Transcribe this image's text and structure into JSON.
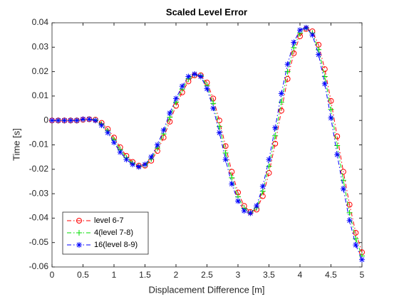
{
  "chart_data": {
    "type": "line",
    "title": "Scaled Level Error",
    "x_label": "Displacement Difference [m]",
    "y_label": "Time [s]",
    "x": [
      0,
      0.1,
      0.2,
      0.3,
      0.4,
      0.5,
      0.6,
      0.7,
      0.8,
      0.9,
      1,
      1.1,
      1.2,
      1.3,
      1.4,
      1.5,
      1.6,
      1.7,
      1.8,
      1.9,
      2,
      2.1,
      2.2,
      2.3,
      2.4,
      2.5,
      2.6,
      2.7,
      2.8,
      2.9,
      3,
      3.1,
      3.2,
      3.3,
      3.4,
      3.5,
      3.6,
      3.7,
      3.8,
      3.9,
      4,
      4.1,
      4.2,
      4.3,
      4.4,
      4.5,
      4.6,
      4.7,
      4.8,
      4.9,
      5
    ],
    "series": [
      {
        "name": "level 6-7",
        "color": "#ff0000",
        "marker": "o",
        "line_style": "-.",
        "values": [
          0,
          0,
          0,
          0,
          0,
          0.0003,
          0.0005,
          0.0003,
          -0.001,
          -0.0035,
          -0.007,
          -0.011,
          -0.0145,
          -0.017,
          -0.0185,
          -0.0185,
          -0.0165,
          -0.0125,
          -0.007,
          -0.0005,
          0.006,
          0.0115,
          0.016,
          0.0185,
          0.0185,
          0.0155,
          0.009,
          0,
          -0.0105,
          -0.021,
          -0.0295,
          -0.035,
          -0.0375,
          -0.0365,
          -0.031,
          -0.0215,
          -0.0095,
          0.004,
          0.017,
          0.0275,
          0.0345,
          0.0375,
          0.0365,
          0.031,
          0.021,
          0.008,
          -0.0065,
          -0.021,
          -0.0345,
          -0.046,
          -0.054
        ]
      },
      {
        "name": "4(level 7-8)",
        "color": "#00dd00",
        "marker": "+",
        "line_style": "-.",
        "values": [
          0,
          0,
          0,
          0,
          0,
          0.0004,
          0.0005,
          0.0002,
          -0.0015,
          -0.0043,
          -0.008,
          -0.012,
          -0.0153,
          -0.0175,
          -0.0188,
          -0.0183,
          -0.0158,
          -0.0113,
          -0.0055,
          0.0013,
          0.0075,
          0.0128,
          0.017,
          0.0188,
          0.0183,
          0.0143,
          0.007,
          -0.0025,
          -0.0133,
          -0.0235,
          -0.0313,
          -0.036,
          -0.0378,
          -0.0358,
          -0.029,
          -0.0188,
          -0.0063,
          0.0075,
          0.02,
          0.0298,
          0.0358,
          0.0378,
          0.0358,
          0.029,
          0.018,
          0.0045,
          -0.0103,
          -0.0245,
          -0.0378,
          -0.0485,
          -0.0555
        ]
      },
      {
        "name": "16(level 8-9)",
        "color": "#0000ff",
        "marker": "*",
        "line_style": "-.",
        "values": [
          0,
          0,
          0,
          0,
          0,
          0.0005,
          0.0005,
          0,
          -0.002,
          -0.005,
          -0.009,
          -0.013,
          -0.016,
          -0.018,
          -0.019,
          -0.018,
          -0.015,
          -0.01,
          -0.004,
          0.003,
          0.009,
          0.014,
          0.018,
          0.019,
          0.018,
          0.013,
          0.005,
          -0.005,
          -0.016,
          -0.026,
          -0.033,
          -0.037,
          -0.038,
          -0.035,
          -0.027,
          -0.016,
          -0.003,
          0.011,
          0.023,
          0.032,
          0.037,
          0.038,
          0.035,
          0.027,
          0.015,
          0.001,
          -0.014,
          -0.028,
          -0.041,
          -0.051,
          -0.057
        ]
      }
    ],
    "xlim": [
      0,
      5
    ],
    "xticks": [
      0,
      0.5,
      1,
      1.5,
      2,
      2.5,
      3,
      3.5,
      4,
      4.5,
      5
    ],
    "ylim": [
      -0.06,
      0.04
    ],
    "yticks": [
      -0.06,
      -0.05,
      -0.04,
      -0.03,
      -0.02,
      -0.01,
      0,
      0.01,
      0.02,
      0.03,
      0.04
    ],
    "grid": false,
    "legend": "lower left"
  }
}
